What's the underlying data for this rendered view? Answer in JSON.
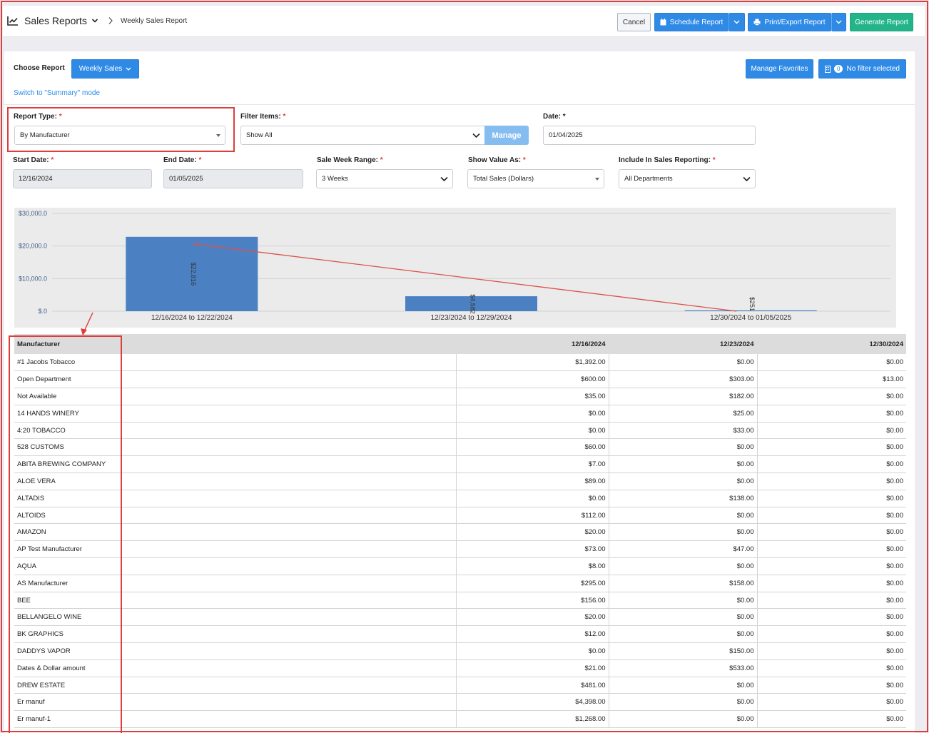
{
  "header": {
    "title": "Sales Reports",
    "breadcrumb": "Weekly Sales Report",
    "cancel_label": "Cancel",
    "schedule_label": "Schedule Report",
    "print_label": "Print/Export Report",
    "generate_label": "Generate Report"
  },
  "controls": {
    "choose_report_label": "Choose Report",
    "choose_report_value": "Weekly Sales",
    "manage_favorites_label": "Manage Favorites",
    "filter_count": "0",
    "no_filter_label": "No filter selected",
    "switch_mode_link": "Switch to \"Summary\" mode"
  },
  "form": {
    "report_type": {
      "label": "Report Type:",
      "required": "*",
      "value": "By Manufacturer"
    },
    "filter_items": {
      "label": "Filter Items:",
      "required": "*",
      "value": "Show All",
      "manage_label": "Manage"
    },
    "date": {
      "label": "Date:",
      "required": "*",
      "value": "01/04/2025"
    },
    "start_date": {
      "label": "Start Date:",
      "required": "*",
      "value": "12/16/2024"
    },
    "end_date": {
      "label": "End Date:",
      "required": "*",
      "value": "01/05/2025"
    },
    "sale_week_range": {
      "label": "Sale Week Range:",
      "required": "*",
      "value": "3 Weeks"
    },
    "show_value_as": {
      "label": "Show Value As:",
      "required": "*",
      "value": "Total Sales (Dollars)"
    },
    "include_in_sales": {
      "label": "Include In Sales Reporting:",
      "required": "*",
      "value": "All Departments"
    }
  },
  "chart_data": {
    "type": "bar",
    "categories": [
      "12/16/2024 to 12/22/2024",
      "12/23/2024 to 12/29/2024",
      "12/30/2024 to 01/05/2025"
    ],
    "values": [
      22816,
      4582,
      251
    ],
    "data_labels": [
      "$22,816",
      "$4,582",
      "$251"
    ],
    "y_ticks": [
      "$.0",
      "$10,000.0",
      "$20,000.0",
      "$30,000.0"
    ],
    "ylim": [
      0,
      30000
    ],
    "grid": true,
    "bar_color": "#4b80c3",
    "annotation_color": "#d9534f"
  },
  "table": {
    "columns": [
      "Manufacturer",
      "12/16/2024",
      "12/23/2024",
      "12/30/2024"
    ],
    "rows": [
      [
        "#1 Jacobs Tobacco",
        "$1,392.00",
        "$0.00",
        "$0.00"
      ],
      [
        "Open Department",
        "$600.00",
        "$303.00",
        "$13.00"
      ],
      [
        "Not Available",
        "$35.00",
        "$182.00",
        "$0.00"
      ],
      [
        "14 HANDS WINERY",
        "$0.00",
        "$25.00",
        "$0.00"
      ],
      [
        "4:20 TOBACCO",
        "$0.00",
        "$33.00",
        "$0.00"
      ],
      [
        "528 CUSTOMS",
        "$60.00",
        "$0.00",
        "$0.00"
      ],
      [
        "ABITA BREWING COMPANY",
        "$7.00",
        "$0.00",
        "$0.00"
      ],
      [
        "ALOE VERA",
        "$89.00",
        "$0.00",
        "$0.00"
      ],
      [
        "ALTADIS",
        "$0.00",
        "$138.00",
        "$0.00"
      ],
      [
        "ALTOIDS",
        "$112.00",
        "$0.00",
        "$0.00"
      ],
      [
        "AMAZON",
        "$20.00",
        "$0.00",
        "$0.00"
      ],
      [
        "AP Test Manufacturer",
        "$73.00",
        "$47.00",
        "$0.00"
      ],
      [
        "AQUA",
        "$8.00",
        "$0.00",
        "$0.00"
      ],
      [
        "AS Manufacturer",
        "$295.00",
        "$158.00",
        "$0.00"
      ],
      [
        "BEE",
        "$156.00",
        "$0.00",
        "$0.00"
      ],
      [
        "BELLANGELO WINE",
        "$20.00",
        "$0.00",
        "$0.00"
      ],
      [
        "BK GRAPHICS",
        "$12.00",
        "$0.00",
        "$0.00"
      ],
      [
        "DADDYS VAPOR",
        "$0.00",
        "$150.00",
        "$0.00"
      ],
      [
        "Dates & Dollar amount",
        "$21.00",
        "$533.00",
        "$0.00"
      ],
      [
        "DREW ESTATE",
        "$481.00",
        "$0.00",
        "$0.00"
      ],
      [
        "Er manuf",
        "$4,398.00",
        "$0.00",
        "$0.00"
      ],
      [
        "Er manuf-1",
        "$1,268.00",
        "$0.00",
        "$0.00"
      ]
    ]
  },
  "colors": {
    "primary_blue": "#2f8ae6",
    "generate_green": "#23b48a",
    "highlight_red": "#e03c3c"
  }
}
